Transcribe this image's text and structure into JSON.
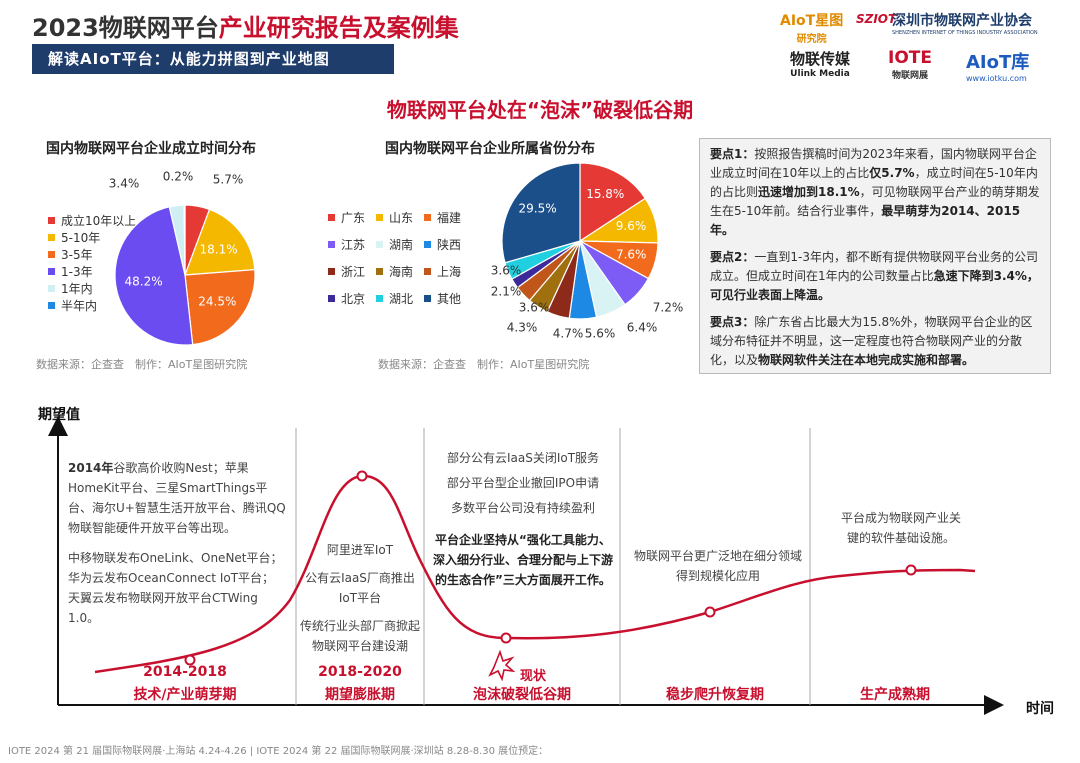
{
  "header": {
    "title_prefix": "2023物联网平台",
    "title_highlight": "产业研究报告及案例集",
    "banner": "解读AIoT平台：从能力拼图到产业地图",
    "logos": {
      "aiot_star": "AIoT星图",
      "aiot_star_sub": "研究院",
      "sziot": "SZIOT",
      "association": "深圳市物联网产业协会",
      "association_en": "SHENZHEN INTERNET OF THINGS INDUSTRY ASSOCIATION",
      "ulink": "物联传媒",
      "ulink_en": "Ulink Media",
      "iote": "IOTE",
      "iote_sub": "物联网展",
      "aiotku": "AIoT库",
      "aiotku_url": "www.iotku.com"
    }
  },
  "section_title": "物联网平台处在“泡沫”破裂低谷期",
  "pie1": {
    "title": "国内物联网平台企业成立时间分布",
    "source": "数据来源：企查查　制作：AIoT星图研究院",
    "legend": [
      {
        "label": "成立10年以上",
        "color": "#e53935"
      },
      {
        "label": "5-10年",
        "color": "#f5b800"
      },
      {
        "label": "3-5年",
        "color": "#f26a1b"
      },
      {
        "label": "1-3年",
        "color": "#6a4cf0"
      },
      {
        "label": "1年内",
        "color": "#cfeff3"
      },
      {
        "label": "半年内",
        "color": "#1e88e5"
      }
    ]
  },
  "pie2": {
    "title": "国内物联网平台企业所属省份分布",
    "source": "数据来源：企查查　制作：AIoT星图研究院",
    "legend": [
      {
        "label": "广东",
        "color": "#e53935"
      },
      {
        "label": "山东",
        "color": "#f5b800"
      },
      {
        "label": "福建",
        "color": "#f26a1b"
      },
      {
        "label": "江苏",
        "color": "#7c5cf5"
      },
      {
        "label": "湖南",
        "color": "#d9f3f5"
      },
      {
        "label": "陕西",
        "color": "#1e88e5"
      },
      {
        "label": "浙江",
        "color": "#8e2a1a"
      },
      {
        "label": "海南",
        "color": "#a0700f"
      },
      {
        "label": "上海",
        "color": "#c0561a"
      },
      {
        "label": "北京",
        "color": "#3c2a9a"
      },
      {
        "label": "湖北",
        "color": "#20d0e0"
      },
      {
        "label": "其他",
        "color": "#1b4f8a"
      }
    ]
  },
  "chart_data": [
    {
      "type": "pie",
      "title": "国内物联网平台企业成立时间分布",
      "categories": [
        "成立10年以上",
        "5-10年",
        "3-5年",
        "1-3年",
        "1年内",
        "半年内"
      ],
      "values": [
        5.7,
        18.1,
        24.5,
        48.2,
        3.4,
        0.2
      ],
      "labels": [
        "5.7%",
        "18.1%",
        "24.5%",
        "48.2%",
        "3.4%",
        "0.2%"
      ]
    },
    {
      "type": "pie",
      "title": "国内物联网平台企业所属省份分布",
      "categories": [
        "广东",
        "山东",
        "福建",
        "江苏",
        "湖南",
        "陕西",
        "浙江",
        "海南",
        "上海",
        "北京",
        "湖北",
        "其他"
      ],
      "values": [
        15.8,
        9.6,
        7.6,
        7.2,
        6.4,
        5.6,
        4.7,
        4.3,
        3.6,
        2.1,
        3.6,
        29.5
      ],
      "labels": [
        "15.8%",
        "9.6%",
        "7.6%",
        "7.2%",
        "6.4%",
        "5.6%",
        "4.7%",
        "4.3%",
        "3.6%",
        "2.1%",
        "3.6%",
        "29.5%"
      ]
    }
  ],
  "key_points": [
    {
      "label": "要点1：",
      "text1": "按照报告撰稿时间为2023年来看，国内物联网平台企业成立时间在10年以上的占比",
      "b1": "仅5.7%",
      "text2": "，成立时间在5-10年内的占比则",
      "b2": "迅速增加到18.1%",
      "text3": "，可见物联网平台产业的萌芽期发生在5-10年前。结合行业事件，",
      "b3": "最早萌芽为2014、2015年。",
      "text4": ""
    },
    {
      "label": "要点2：",
      "text1": "一直到1-3年内，都不断有提供物联网平台业务的公司成立。但成立时间在1年内的公司数量占比",
      "b1": "急速下降到3.4%，可见行业表面上降温。",
      "text2": "",
      "b2": "",
      "text3": "",
      "b3": "",
      "text4": ""
    },
    {
      "label": "要点3：",
      "text1": "除广东省占比最大为15.8%外，物联网平台企业的区域分布特征并不明显，这一定程度也符合物联网产业的分散化，以及",
      "b1": "物联网软件关注在本地完成实施和部署。",
      "text2": "",
      "b2": "",
      "text3": "",
      "b3": "",
      "text4": ""
    }
  ],
  "hype": {
    "y_label": "期望值",
    "x_label": "时间",
    "now_label": "现状",
    "stages": [
      {
        "date": "2014-2018",
        "name": "技术/产业萌芽期"
      },
      {
        "date": "2018-2020",
        "name": "期望膨胀期"
      },
      {
        "date": "",
        "name": "泡沫破裂低谷期"
      },
      {
        "date": "",
        "name": "稳步爬升恢复期"
      },
      {
        "date": "",
        "name": "生产成熟期"
      }
    ],
    "s1_p1_bold": "2014年",
    "s1_p1": "谷歌高价收购Nest；苹果HomeKit平台、三星SmartThings平台、海尔U+智慧生活开放平台、腾讯QQ物联智能硬件开放平台等出现。",
    "s1_p2": "中移物联发布OneLink、OneNet平台；华为云发布OceanConnect IoT平台；天翼云发布物联网开放平台CTWing 1.0。",
    "s2_lines": [
      "阿里进军IoT",
      "公有云IaaS厂商推出IoT平台",
      "传统行业头部厂商掀起物联网平台建设潮"
    ],
    "s3_lines": [
      "部分公有云IaaS关闭IoT服务",
      "部分平台型企业撤回IPO申请",
      "多数平台公司没有持续盈利"
    ],
    "s3_bold": "平台企业坚持从“强化工具能力、深入细分行业、合理分配与上下游的生态合作”三大方面展开工作。",
    "s4_text": "物联网平台更广泛地在细分领域得到规模化应用",
    "s5_text": "平台成为物联网产业关键的软件基础设施。"
  },
  "footer": "IOTE 2024 第 21 届国际物联网展·上海站 4.24-4.26 | IOTE 2024 第 22 届国际物联网展·深圳站 8.28-8.30  展位预定："
}
